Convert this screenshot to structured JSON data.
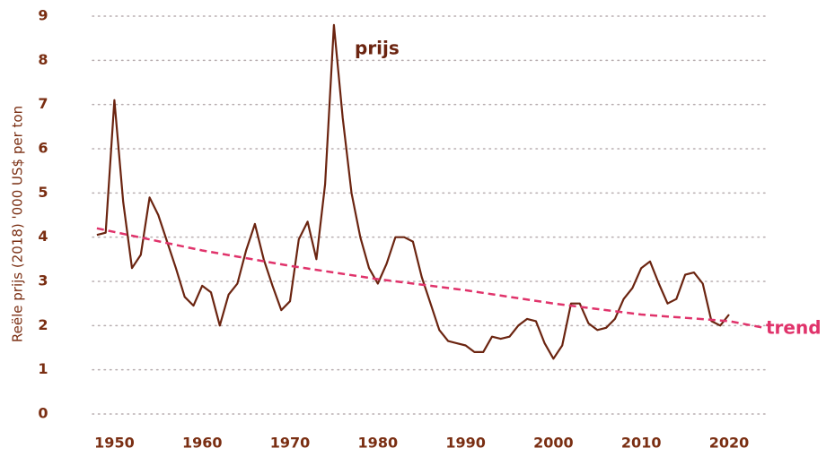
{
  "chart_data": {
    "type": "line",
    "y_label": "Reële prijs (2018) '000 US$ per ton",
    "xlim": [
      1947.5,
      2024.5
    ],
    "xticks": [
      1950,
      1960,
      1970,
      1980,
      1990,
      2000,
      2010,
      2020
    ],
    "ylim": [
      0,
      9
    ],
    "yticks": [
      0,
      1,
      2,
      3,
      4,
      5,
      6,
      7,
      8,
      9
    ],
    "grid": true,
    "series": [
      {
        "name": "prijs",
        "color": "#6b2410",
        "dashed": false,
        "x": [
          1948,
          1949,
          1950,
          1951,
          1952,
          1953,
          1954,
          1955,
          1956,
          1957,
          1958,
          1959,
          1960,
          1961,
          1962,
          1963,
          1964,
          1965,
          1966,
          1967,
          1968,
          1969,
          1970,
          1971,
          1972,
          1973,
          1974,
          1975,
          1976,
          1977,
          1978,
          1979,
          1980,
          1981,
          1982,
          1983,
          1984,
          1985,
          1986,
          1987,
          1988,
          1989,
          1990,
          1991,
          1992,
          1993,
          1994,
          1995,
          1996,
          1997,
          1998,
          1999,
          2000,
          2001,
          2002,
          2003,
          2004,
          2005,
          2006,
          2007,
          2008,
          2009,
          2010,
          2011,
          2012,
          2013,
          2014,
          2015,
          2016,
          2017,
          2018,
          2019,
          2020
        ],
        "values": [
          4.05,
          4.1,
          7.1,
          4.8,
          3.3,
          3.6,
          4.9,
          4.5,
          3.9,
          3.3,
          2.65,
          2.45,
          2.9,
          2.75,
          2.0,
          2.7,
          2.95,
          3.7,
          4.3,
          3.5,
          2.9,
          2.35,
          2.55,
          3.95,
          4.35,
          3.5,
          5.2,
          8.8,
          6.7,
          5.0,
          4.0,
          3.3,
          2.95,
          3.4,
          4.0,
          4.0,
          3.9,
          3.1,
          2.5,
          1.9,
          1.65,
          1.6,
          1.55,
          1.4,
          1.4,
          1.75,
          1.7,
          1.75,
          2.0,
          2.15,
          2.1,
          1.6,
          1.25,
          1.55,
          2.5,
          2.5,
          2.05,
          1.9,
          1.95,
          2.15,
          2.6,
          2.85,
          3.3,
          3.45,
          2.95,
          2.5,
          2.6,
          3.15,
          3.2,
          2.95,
          2.1,
          2.0,
          2.25
        ]
      },
      {
        "name": "trend",
        "color": "#e0336b",
        "dashed": true,
        "x": [
          1948,
          1960,
          1970,
          1980,
          1990,
          2000,
          2010,
          2020,
          2024
        ],
        "values": [
          4.2,
          3.7,
          3.35,
          3.05,
          2.8,
          2.5,
          2.25,
          2.1,
          1.95
        ]
      }
    ]
  }
}
